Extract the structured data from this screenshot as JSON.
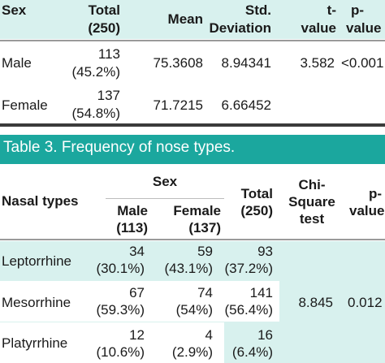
{
  "table2": {
    "headers": {
      "sex": "Sex",
      "total_line1": "Total",
      "total_line2": "(250)",
      "mean": "Mean",
      "std_line1": "Std.",
      "std_line2": "Deviation",
      "t_line1": "t-",
      "t_line2": "value",
      "p_line1": "p-",
      "p_line2": "value"
    },
    "rows": [
      {
        "sex": "Male",
        "total_count": "113",
        "total_pct": "(45.2%)",
        "mean": "75.3608",
        "std": "8.94341",
        "t": "3.582",
        "p": "<0.001"
      },
      {
        "sex": "Female",
        "total_count": "137",
        "total_pct": "(54.8%)",
        "mean": "71.7215",
        "std": "6.66452"
      }
    ]
  },
  "table3": {
    "caption": "Table 3. Frequency of nose types.",
    "headers": {
      "nasal_types": "Nasal types",
      "sex": "Sex",
      "male_line1": "Male",
      "male_line2": "(113)",
      "female_line1": "Female",
      "female_line2": "(137)",
      "total_line1": "Total",
      "total_line2": "(250)",
      "chi_line1": "Chi-",
      "chi_line2": "Square",
      "chi_line3": "test",
      "p_line1": "p-",
      "p_line2": "value"
    },
    "rows": [
      {
        "type": "Leptorrhine",
        "male_count": "34",
        "male_pct": "(30.1%)",
        "female_count": "59",
        "female_pct": "(43.1%)",
        "total_count": "93",
        "total_pct": "(37.2%)"
      },
      {
        "type": "Mesorrhine",
        "male_count": "67",
        "male_pct": "(59.3%)",
        "female_count": "74",
        "female_pct": "(54%)",
        "total_count": "141",
        "total_pct": "(56.4%)"
      },
      {
        "type": "Platyrrhine",
        "male_count": "12",
        "male_pct": "(10.6%)",
        "female_count": "4",
        "female_pct": "(2.9%)",
        "total_count": "16",
        "total_pct": "(6.4%)"
      }
    ],
    "chi_square": "8.845",
    "p_value": "0.012"
  },
  "colors": {
    "header_bg": "#d8f1ee",
    "caption_bg": "#1ba79e",
    "caption_text": "#ffffff"
  }
}
